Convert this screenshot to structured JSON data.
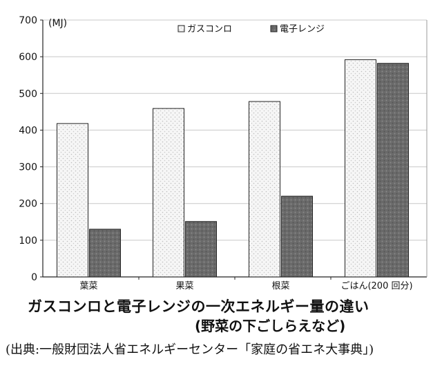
{
  "chart_data": {
    "type": "bar",
    "unit": "(MJ)",
    "categories": [
      "葉菜",
      "果菜",
      "根菜",
      "ごはん(200 回分)"
    ],
    "series": [
      {
        "name": "ガスコンロ",
        "values": [
          418,
          459,
          478,
          592
        ],
        "color": "#f4f4f4",
        "pattern": "light-dotted"
      },
      {
        "name": "電子レンジ",
        "values": [
          130,
          151,
          220,
          582
        ],
        "color": "#6e6e6e",
        "pattern": "dark-dotted"
      }
    ],
    "yticks": [
      0,
      100,
      200,
      300,
      400,
      500,
      600,
      700
    ],
    "ylim": [
      0,
      700
    ],
    "grid": true,
    "legend_position": "top"
  },
  "caption": {
    "title": "ガスコンロと電子レンジの一次エネルギー量の違い",
    "subtitle": "(野菜の下ごしらえなど)",
    "source": "(出典:一般財団法人省エネルギーセンター「家庭の省エネ大事典」)"
  }
}
